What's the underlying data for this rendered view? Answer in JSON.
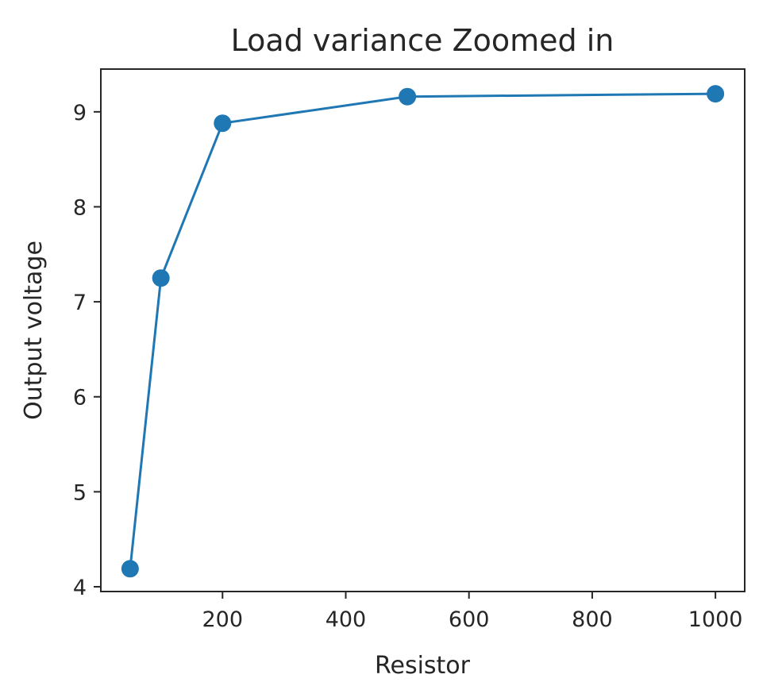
{
  "chart_data": {
    "type": "line",
    "title": "Load variance Zoomed in",
    "xlabel": "Resistor",
    "ylabel": "Output voltage",
    "xlim": [
      2.5,
      1047.5
    ],
    "ylim": [
      3.95,
      9.45
    ],
    "xticks": [
      200,
      400,
      600,
      800,
      1000
    ],
    "yticks": [
      4,
      5,
      6,
      7,
      8,
      9
    ],
    "grid": false,
    "series": [
      {
        "color": "#1f77b4",
        "marker": "circle",
        "x": [
          50,
          100,
          200,
          500,
          1000
        ],
        "y": [
          4.19,
          7.25,
          8.88,
          9.16,
          9.19
        ]
      }
    ]
  }
}
